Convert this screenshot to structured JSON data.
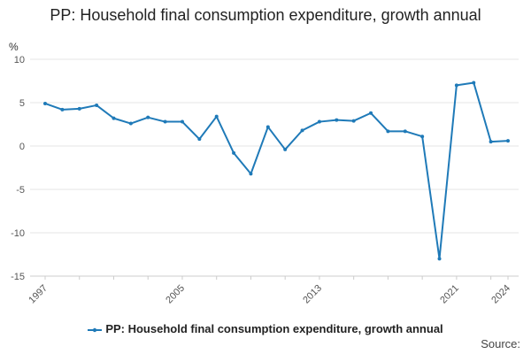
{
  "chart_data": {
    "type": "line",
    "title": "PP: Household final consumption expenditure, growth annual",
    "ylabel": "%",
    "xlabel": "",
    "ylim": [
      -15,
      10
    ],
    "yticks": [
      10,
      5,
      0,
      -5,
      -10,
      -15
    ],
    "xtick_labels": [
      "1997",
      "2005",
      "2013",
      "2021",
      "2024"
    ],
    "x": [
      1997,
      1998,
      1999,
      2000,
      2001,
      2002,
      2003,
      2004,
      2005,
      2006,
      2007,
      2008,
      2009,
      2010,
      2011,
      2012,
      2013,
      2014,
      2015,
      2016,
      2017,
      2018,
      2019,
      2020,
      2021,
      2022,
      2023,
      2024
    ],
    "series": [
      {
        "name": "PP: Household final consumption expenditure, growth annual",
        "color": "#1f7ab8",
        "values": [
          4.9,
          4.2,
          4.3,
          4.7,
          3.2,
          2.6,
          3.3,
          2.8,
          2.8,
          0.8,
          3.4,
          -0.8,
          -3.2,
          2.2,
          -0.4,
          1.8,
          2.8,
          3.0,
          2.9,
          3.8,
          1.7,
          1.7,
          1.1,
          -13.0,
          7.0,
          7.3,
          0.5,
          0.6
        ]
      }
    ],
    "grid": true,
    "legend": "bottom"
  },
  "footer": {
    "source_label": "Source:"
  }
}
